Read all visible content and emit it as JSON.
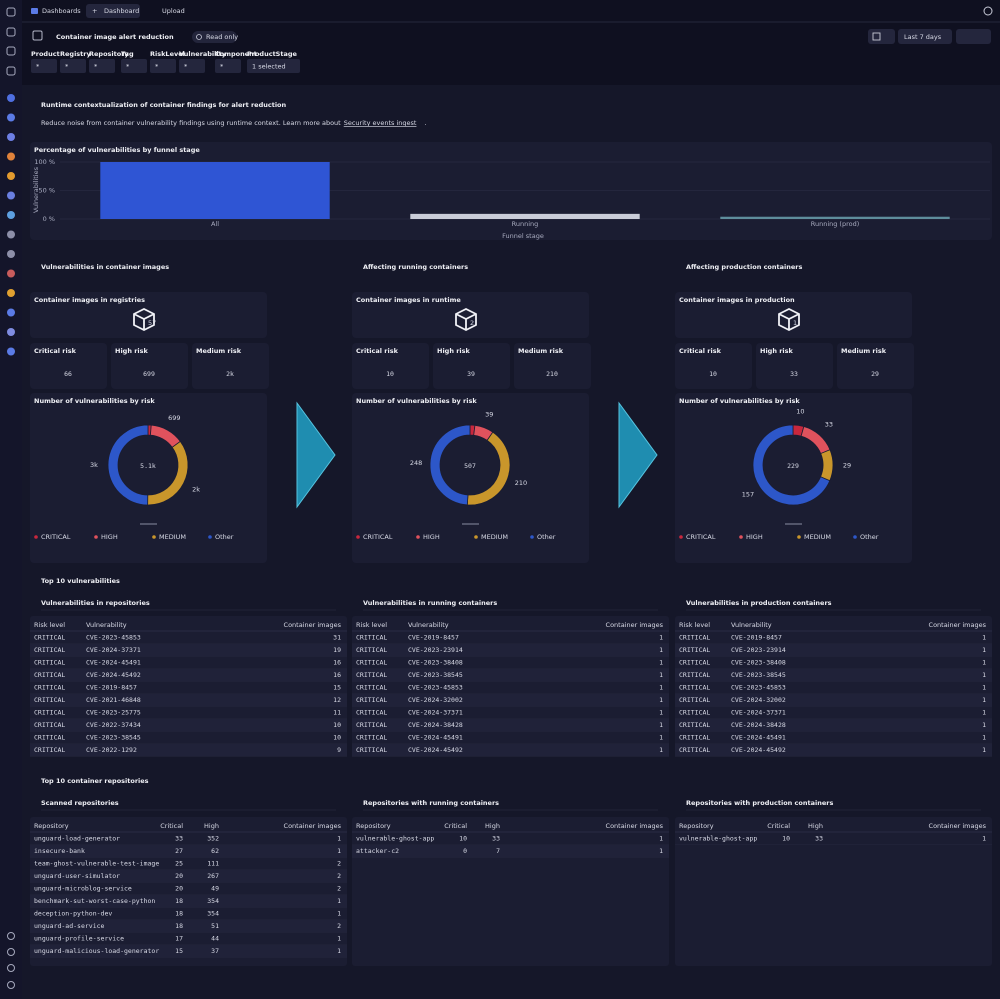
{
  "topbar": {
    "tabs": [
      "Dashboards",
      "Dashboard",
      "Upload"
    ]
  },
  "toolbar": {
    "title": "Container image alert reduction",
    "badge": "Read only",
    "timeframe": "Last 7 days"
  },
  "filters": [
    {
      "label": "Product",
      "value": "*"
    },
    {
      "label": "Registry",
      "value": "*"
    },
    {
      "label": "Repository",
      "value": "*"
    },
    {
      "label": "Tag",
      "value": "*"
    },
    {
      "label": "RiskLevel",
      "value": "*"
    },
    {
      "label": "Vulnerability",
      "value": "*"
    },
    {
      "label": "Component",
      "value": "*"
    },
    {
      "label": "ProductStage",
      "value": "1 selected"
    }
  ],
  "header": {
    "title": "Runtime contextualization of container findings for alert reduction",
    "description": "Reduce noise from container vulnerability findings using runtime context. Learn more about",
    "link": "Security events ingest",
    "suffix": "."
  },
  "chart_data": [
    {
      "type": "bar",
      "title": "Percentage of vulnerabilities by funnel stage",
      "y_label": "Vulnerabilities",
      "x_label": "Funnel stage",
      "categories": [
        "All",
        "Running",
        "Running (prod)"
      ],
      "values": [
        100,
        9,
        4
      ],
      "colors": [
        "#2f55d4",
        "#c9ccd8",
        "#5e8d9c"
      ],
      "ylim": [
        0,
        100
      ],
      "yticks": [
        {
          "value": 0,
          "label": "0 %"
        },
        {
          "value": 50,
          "label": "50 %"
        },
        {
          "value": 100,
          "label": "100 %"
        }
      ],
      "grid": true
    },
    {
      "type": "donut",
      "title": "Number of vulnerabilities by risk",
      "center_label": "5.1k",
      "categories": [
        "CRITICAL",
        "HIGH",
        "MEDIUM",
        "Other"
      ],
      "values": [
        66,
        699,
        1800,
        2550
      ],
      "value_labels": [
        null,
        "699",
        "2k",
        "3k"
      ],
      "colors": [
        "#c8273d",
        "#e0525d",
        "#c9962b",
        "#2d57c9"
      ]
    },
    {
      "type": "donut",
      "title": "Number of vulnerabilities by risk",
      "center_label": "507",
      "categories": [
        "CRITICAL",
        "HIGH",
        "MEDIUM",
        "Other"
      ],
      "values": [
        10,
        39,
        210,
        248
      ],
      "value_labels": [
        null,
        "39",
        "210",
        "248"
      ],
      "colors": [
        "#c8273d",
        "#e0525d",
        "#c9962b",
        "#2d57c9"
      ]
    },
    {
      "type": "donut",
      "title": "Number of vulnerabilities by risk",
      "center_label": "229",
      "categories": [
        "CRITICAL",
        "HIGH",
        "MEDIUM",
        "Other"
      ],
      "values": [
        10,
        33,
        29,
        157
      ],
      "value_labels": [
        "10",
        "33",
        "29",
        "157"
      ],
      "colors": [
        "#c8273d",
        "#e0525d",
        "#c9962b",
        "#2d57c9"
      ]
    }
  ],
  "columns": [
    {
      "heading": "Vulnerabilities in container images",
      "images_label": "Container images in registries",
      "images_value": "57",
      "risks": [
        {
          "label": "Critical risk",
          "value": "66"
        },
        {
          "label": "High risk",
          "value": "699"
        },
        {
          "label": "Medium risk",
          "value": "2k"
        }
      ]
    },
    {
      "heading": "Affecting running containers",
      "images_label": "Container images in runtime",
      "images_value": "2",
      "risks": [
        {
          "label": "Critical risk",
          "value": "10"
        },
        {
          "label": "High risk",
          "value": "39"
        },
        {
          "label": "Medium risk",
          "value": "210"
        }
      ]
    },
    {
      "heading": "Affecting production containers",
      "images_label": "Container images in production",
      "images_value": "1",
      "risks": [
        {
          "label": "Critical risk",
          "value": "10"
        },
        {
          "label": "High risk",
          "value": "33"
        },
        {
          "label": "Medium risk",
          "value": "29"
        }
      ]
    }
  ],
  "vulnerabilities": {
    "heading": "Top 10 vulnerabilities",
    "tables": [
      {
        "title": "Vulnerabilities in repositories",
        "columns": [
          "Risk level",
          "Vulnerability",
          "Container images"
        ],
        "rows": [
          [
            "CRITICAL",
            "CVE-2023-45853",
            31
          ],
          [
            "CRITICAL",
            "CVE-2024-37371",
            19
          ],
          [
            "CRITICAL",
            "CVE-2024-45491",
            16
          ],
          [
            "CRITICAL",
            "CVE-2024-45492",
            16
          ],
          [
            "CRITICAL",
            "CVE-2019-8457",
            15
          ],
          [
            "CRITICAL",
            "CVE-2021-46848",
            12
          ],
          [
            "CRITICAL",
            "CVE-2023-25775",
            11
          ],
          [
            "CRITICAL",
            "CVE-2022-37434",
            10
          ],
          [
            "CRITICAL",
            "CVE-2023-38545",
            10
          ],
          [
            "CRITICAL",
            "CVE-2022-1292",
            9
          ]
        ]
      },
      {
        "title": "Vulnerabilities in running containers",
        "columns": [
          "Risk level",
          "Vulnerability",
          "Container images"
        ],
        "rows": [
          [
            "CRITICAL",
            "CVE-2019-8457",
            1
          ],
          [
            "CRITICAL",
            "CVE-2023-23914",
            1
          ],
          [
            "CRITICAL",
            "CVE-2023-38408",
            1
          ],
          [
            "CRITICAL",
            "CVE-2023-38545",
            1
          ],
          [
            "CRITICAL",
            "CVE-2023-45853",
            1
          ],
          [
            "CRITICAL",
            "CVE-2024-32002",
            1
          ],
          [
            "CRITICAL",
            "CVE-2024-37371",
            1
          ],
          [
            "CRITICAL",
            "CVE-2024-38428",
            1
          ],
          [
            "CRITICAL",
            "CVE-2024-45491",
            1
          ],
          [
            "CRITICAL",
            "CVE-2024-45492",
            1
          ]
        ]
      },
      {
        "title": "Vulnerabilities in production containers",
        "columns": [
          "Risk level",
          "Vulnerability",
          "Container images"
        ],
        "rows": [
          [
            "CRITICAL",
            "CVE-2019-8457",
            1
          ],
          [
            "CRITICAL",
            "CVE-2023-23914",
            1
          ],
          [
            "CRITICAL",
            "CVE-2023-38408",
            1
          ],
          [
            "CRITICAL",
            "CVE-2023-38545",
            1
          ],
          [
            "CRITICAL",
            "CVE-2023-45853",
            1
          ],
          [
            "CRITICAL",
            "CVE-2024-32002",
            1
          ],
          [
            "CRITICAL",
            "CVE-2024-37371",
            1
          ],
          [
            "CRITICAL",
            "CVE-2024-38428",
            1
          ],
          [
            "CRITICAL",
            "CVE-2024-45491",
            1
          ],
          [
            "CRITICAL",
            "CVE-2024-45492",
            1
          ]
        ]
      }
    ]
  },
  "repositories": {
    "heading": "Top 10 container repositories",
    "tables": [
      {
        "title": "Scanned repositories",
        "columns": [
          "Repository",
          "Critical",
          "High",
          "Container images"
        ],
        "rows": [
          [
            "unguard-load-generator",
            33,
            352,
            1
          ],
          [
            "insecure-bank",
            27,
            62,
            1
          ],
          [
            "team-ghost-vulnerable-test-image",
            25,
            111,
            2
          ],
          [
            "unguard-user-simulator",
            20,
            267,
            2
          ],
          [
            "unguard-microblog-service",
            20,
            49,
            2
          ],
          [
            "benchmark-sut-worst-case-python",
            18,
            354,
            1
          ],
          [
            "deception-python-dev",
            18,
            354,
            1
          ],
          [
            "unguard-ad-service",
            18,
            51,
            2
          ],
          [
            "unguard-profile-service",
            17,
            44,
            1
          ],
          [
            "unguard-malicious-load-generator",
            15,
            37,
            1
          ]
        ]
      },
      {
        "title": "Repositories with running containers",
        "columns": [
          "Repository",
          "Critical",
          "High",
          "Container images"
        ],
        "rows": [
          [
            "vulnerable-ghost-app",
            10,
            33,
            1
          ],
          [
            "attacker-c2",
            0,
            7,
            1
          ]
        ]
      },
      {
        "title": "Repositories with production containers",
        "columns": [
          "Repository",
          "Critical",
          "High",
          "Container images"
        ],
        "rows": [
          [
            "vulnerable-ghost-app",
            10,
            33,
            1
          ]
        ]
      }
    ]
  }
}
